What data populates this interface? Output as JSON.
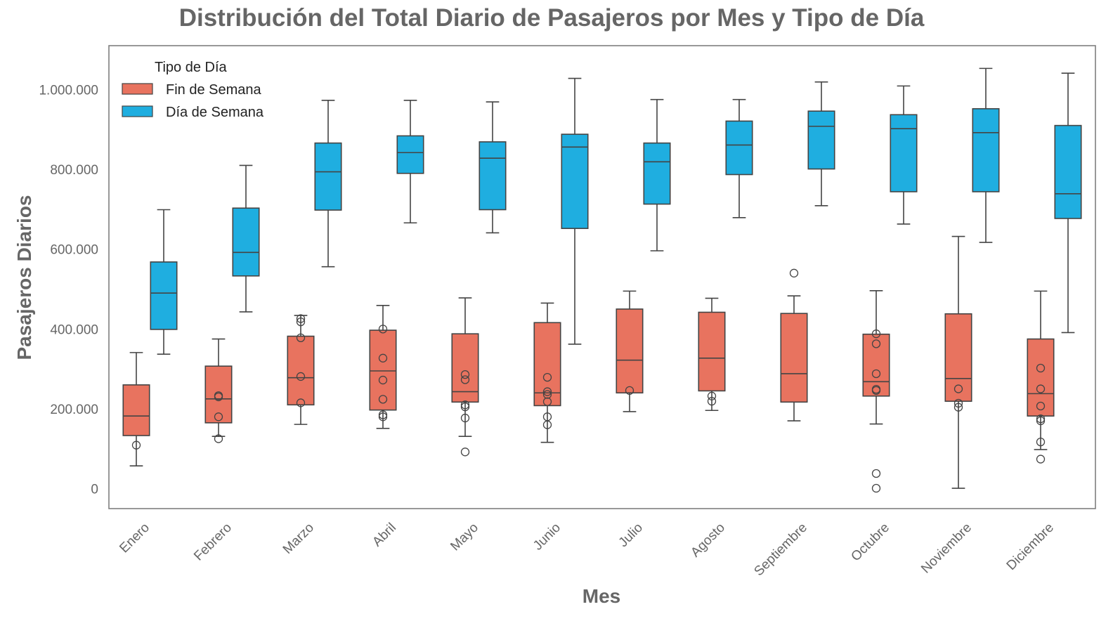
{
  "chart_data": {
    "type": "boxplot",
    "title": "Distribución del Total Diario de Pasajeros por Mes y Tipo de Día",
    "xlabel": "Mes",
    "ylabel": "Pasajeros Diarios",
    "ylim": [
      -50000,
      1110000
    ],
    "yticks": [
      0,
      200000,
      400000,
      600000,
      800000,
      1000000
    ],
    "ytick_labels": [
      "0",
      "200.000",
      "400.000",
      "600.000",
      "800.000",
      "1.000.000"
    ],
    "grid": false,
    "legend": {
      "title": "Tipo de Día",
      "placement": "top-left"
    },
    "categories": [
      "Enero",
      "Febrero",
      "Marzo",
      "Abril",
      "Mayo",
      "Junio",
      "Julio",
      "Agosto",
      "Septiembre",
      "Octubre",
      "Noviembre",
      "Diciembre"
    ],
    "series": [
      {
        "name": "Fin de Semana",
        "color": "#E8735F",
        "boxes": [
          {
            "whislo": 57000,
            "q1": 133000,
            "med": 182000,
            "q3": 260000,
            "whishi": 341000,
            "fliers": [
              109000
            ]
          },
          {
            "whislo": 131000,
            "q1": 165000,
            "med": 225000,
            "q3": 307000,
            "whishi": 375000,
            "fliers": [
              125000,
              180000,
              230000,
              233000
            ]
          },
          {
            "whislo": 161000,
            "q1": 210000,
            "med": 278000,
            "q3": 382000,
            "whishi": 434000,
            "fliers": [
              215000,
              281000,
              378000,
              418000,
              426000
            ]
          },
          {
            "whislo": 151000,
            "q1": 197000,
            "med": 295000,
            "q3": 397000,
            "whishi": 459000,
            "fliers": [
              180000,
              185000,
              224000,
              272000,
              327000,
              400000
            ]
          },
          {
            "whislo": 131000,
            "q1": 217000,
            "med": 243000,
            "q3": 388000,
            "whishi": 478000,
            "fliers": [
              92000,
              177000,
              205000,
              210000,
              273000,
              286000
            ]
          },
          {
            "whislo": 116000,
            "q1": 208000,
            "med": 240000,
            "q3": 416000,
            "whishi": 465000,
            "fliers": [
              160000,
              180000,
              218000,
              236000,
              243000,
              279000
            ]
          },
          {
            "whislo": 193000,
            "q1": 240000,
            "med": 322000,
            "q3": 450000,
            "whishi": 495000,
            "fliers": [
              246000
            ]
          },
          {
            "whislo": 196000,
            "q1": 245000,
            "med": 327000,
            "q3": 442000,
            "whishi": 477000,
            "fliers": [
              219000,
              232000
            ]
          },
          {
            "whislo": 170000,
            "q1": 217000,
            "med": 288000,
            "q3": 439000,
            "whishi": 483000,
            "fliers": [
              540000
            ]
          },
          {
            "whislo": 162000,
            "q1": 232000,
            "med": 268000,
            "q3": 387000,
            "whishi": 496000,
            "fliers": [
              1000,
              38000,
              246000,
              249000,
              288000,
              363000,
              388000
            ]
          },
          {
            "whislo": 1000,
            "q1": 219000,
            "med": 276000,
            "q3": 438000,
            "whishi": 632000,
            "fliers": [
              204000,
              214000,
              250000
            ]
          },
          {
            "whislo": 98000,
            "q1": 182000,
            "med": 238000,
            "q3": 375000,
            "whishi": 495000,
            "fliers": [
              74000,
              117000,
              170000,
              175000,
              207000,
              250000,
              302000
            ]
          }
        ]
      },
      {
        "name": "Día de Semana",
        "color": "#1FAEE0",
        "boxes": [
          {
            "whislo": 337000,
            "q1": 399000,
            "med": 490000,
            "q3": 568000,
            "whishi": 699000,
            "fliers": []
          },
          {
            "whislo": 443000,
            "q1": 533000,
            "med": 592000,
            "q3": 703000,
            "whishi": 810000,
            "fliers": []
          },
          {
            "whislo": 556000,
            "q1": 698000,
            "med": 794000,
            "q3": 866000,
            "whishi": 973000,
            "fliers": []
          },
          {
            "whislo": 666000,
            "q1": 790000,
            "med": 842000,
            "q3": 884000,
            "whishi": 973000,
            "fliers": []
          },
          {
            "whislo": 641000,
            "q1": 699000,
            "med": 828000,
            "q3": 869000,
            "whishi": 969000,
            "fliers": []
          },
          {
            "whislo": 362000,
            "q1": 652000,
            "med": 856000,
            "q3": 888000,
            "whishi": 1028000,
            "fliers": []
          },
          {
            "whislo": 596000,
            "q1": 713000,
            "med": 819000,
            "q3": 866000,
            "whishi": 975000,
            "fliers": []
          },
          {
            "whislo": 679000,
            "q1": 787000,
            "med": 861000,
            "q3": 921000,
            "whishi": 975000,
            "fliers": []
          },
          {
            "whislo": 709000,
            "q1": 801000,
            "med": 908000,
            "q3": 946000,
            "whishi": 1019000,
            "fliers": []
          },
          {
            "whislo": 663000,
            "q1": 744000,
            "med": 902000,
            "q3": 937000,
            "whishi": 1009000,
            "fliers": []
          },
          {
            "whislo": 617000,
            "q1": 744000,
            "med": 892000,
            "q3": 952000,
            "whishi": 1053000,
            "fliers": []
          },
          {
            "whislo": 391000,
            "q1": 677000,
            "med": 739000,
            "q3": 910000,
            "whishi": 1041000,
            "fliers": []
          }
        ]
      }
    ]
  }
}
